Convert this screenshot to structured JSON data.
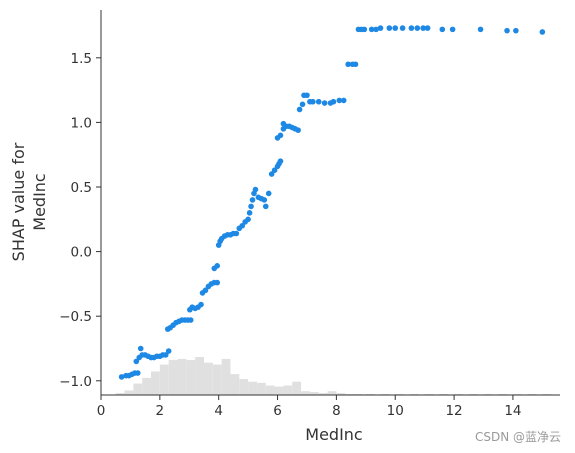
{
  "chart_data": {
    "type": "scatter",
    "xlabel": "MedInc",
    "ylabel_lines": [
      "SHAP value for",
      "MedInc"
    ],
    "xlim": [
      0,
      15.6
    ],
    "ylim": [
      -1.11,
      1.87
    ],
    "xticks": [
      0,
      2,
      4,
      6,
      8,
      10,
      12,
      14
    ],
    "yticks": [
      -1.0,
      -0.5,
      0.0,
      0.5,
      1.0,
      1.5
    ],
    "ytick_labels": [
      "−1.0",
      "−0.5",
      "0.0",
      "0.5",
      "1.0",
      "1.5"
    ],
    "point_color": "#1e88e5",
    "histogram_color": "#e0e0e0",
    "axis_color": "#333333",
    "points": [
      [
        0.7,
        -0.97
      ],
      [
        0.85,
        -0.96
      ],
      [
        0.95,
        -0.96
      ],
      [
        1.05,
        -0.95
      ],
      [
        1.15,
        -0.94
      ],
      [
        1.25,
        -0.94
      ],
      [
        1.2,
        -0.85
      ],
      [
        1.3,
        -0.82
      ],
      [
        1.35,
        -0.75
      ],
      [
        1.4,
        -0.8
      ],
      [
        1.5,
        -0.8
      ],
      [
        1.6,
        -0.81
      ],
      [
        1.7,
        -0.82
      ],
      [
        1.8,
        -0.82
      ],
      [
        1.9,
        -0.81
      ],
      [
        2.0,
        -0.81
      ],
      [
        2.1,
        -0.8
      ],
      [
        2.2,
        -0.8
      ],
      [
        2.3,
        -0.77
      ],
      [
        2.27,
        -0.6
      ],
      [
        2.35,
        -0.59
      ],
      [
        2.45,
        -0.57
      ],
      [
        2.55,
        -0.55
      ],
      [
        2.65,
        -0.54
      ],
      [
        2.75,
        -0.53
      ],
      [
        2.85,
        -0.53
      ],
      [
        2.95,
        -0.53
      ],
      [
        3.05,
        -0.53
      ],
      [
        3.02,
        -0.45
      ],
      [
        3.1,
        -0.43
      ],
      [
        3.2,
        -0.44
      ],
      [
        3.3,
        -0.43
      ],
      [
        3.4,
        -0.41
      ],
      [
        3.45,
        -0.32
      ],
      [
        3.55,
        -0.3
      ],
      [
        3.65,
        -0.27
      ],
      [
        3.75,
        -0.25
      ],
      [
        3.85,
        -0.24
      ],
      [
        3.95,
        -0.24
      ],
      [
        3.85,
        -0.13
      ],
      [
        3.95,
        -0.11
      ],
      [
        4.0,
        0.05
      ],
      [
        4.05,
        0.08
      ],
      [
        4.1,
        0.1
      ],
      [
        4.2,
        0.12
      ],
      [
        4.3,
        0.13
      ],
      [
        4.4,
        0.13
      ],
      [
        4.5,
        0.14
      ],
      [
        4.6,
        0.14
      ],
      [
        4.7,
        0.18
      ],
      [
        4.8,
        0.2
      ],
      [
        4.9,
        0.23
      ],
      [
        5.0,
        0.25
      ],
      [
        5.05,
        0.3
      ],
      [
        5.1,
        0.35
      ],
      [
        5.15,
        0.4
      ],
      [
        5.2,
        0.45
      ],
      [
        5.25,
        0.48
      ],
      [
        5.35,
        0.42
      ],
      [
        5.45,
        0.41
      ],
      [
        5.55,
        0.4
      ],
      [
        5.6,
        0.35
      ],
      [
        5.7,
        0.45
      ],
      [
        5.8,
        0.6
      ],
      [
        5.9,
        0.63
      ],
      [
        6.0,
        0.66
      ],
      [
        6.05,
        0.68
      ],
      [
        6.1,
        0.7
      ],
      [
        6.0,
        0.88
      ],
      [
        6.1,
        0.9
      ],
      [
        6.2,
        0.95
      ],
      [
        6.2,
        0.99
      ],
      [
        6.3,
        0.97
      ],
      [
        6.4,
        0.97
      ],
      [
        6.5,
        0.96
      ],
      [
        6.6,
        0.95
      ],
      [
        6.7,
        0.94
      ],
      [
        6.75,
        1.1
      ],
      [
        6.85,
        1.14
      ],
      [
        6.9,
        1.21
      ],
      [
        7.0,
        1.21
      ],
      [
        7.1,
        1.16
      ],
      [
        7.2,
        1.16
      ],
      [
        7.4,
        1.16
      ],
      [
        7.6,
        1.15
      ],
      [
        7.8,
        1.15
      ],
      [
        7.9,
        1.16
      ],
      [
        8.1,
        1.17
      ],
      [
        8.25,
        1.17
      ],
      [
        8.4,
        1.45
      ],
      [
        8.55,
        1.45
      ],
      [
        8.65,
        1.45
      ],
      [
        8.75,
        1.72
      ],
      [
        8.85,
        1.72
      ],
      [
        8.95,
        1.72
      ],
      [
        9.2,
        1.72
      ],
      [
        9.35,
        1.72
      ],
      [
        9.5,
        1.73
      ],
      [
        9.8,
        1.73
      ],
      [
        10.0,
        1.73
      ],
      [
        10.25,
        1.73
      ],
      [
        10.55,
        1.73
      ],
      [
        10.75,
        1.73
      ],
      [
        10.95,
        1.73
      ],
      [
        11.1,
        1.73
      ],
      [
        11.6,
        1.72
      ],
      [
        11.95,
        1.72
      ],
      [
        12.9,
        1.72
      ],
      [
        13.8,
        1.71
      ],
      [
        14.1,
        1.71
      ],
      [
        15.0,
        1.7
      ]
    ],
    "histogram": [
      [
        0.5,
        0.05
      ],
      [
        0.8,
        0.12
      ],
      [
        1.1,
        0.3
      ],
      [
        1.4,
        0.45
      ],
      [
        1.7,
        0.62
      ],
      [
        2.0,
        0.8
      ],
      [
        2.3,
        0.92
      ],
      [
        2.6,
        0.95
      ],
      [
        2.9,
        0.92
      ],
      [
        3.2,
        1.0
      ],
      [
        3.5,
        0.85
      ],
      [
        3.8,
        0.8
      ],
      [
        4.1,
        0.95
      ],
      [
        4.4,
        0.55
      ],
      [
        4.7,
        0.42
      ],
      [
        5.0,
        0.35
      ],
      [
        5.3,
        0.32
      ],
      [
        5.6,
        0.25
      ],
      [
        5.9,
        0.22
      ],
      [
        6.2,
        0.25
      ],
      [
        6.5,
        0.35
      ],
      [
        6.8,
        0.1
      ],
      [
        7.1,
        0.08
      ],
      [
        7.4,
        0.05
      ],
      [
        7.7,
        0.1
      ],
      [
        8.0,
        0.05
      ],
      [
        8.3,
        0.02
      ],
      [
        8.6,
        0.01
      ],
      [
        9.0,
        0.02
      ],
      [
        9.5,
        0.01
      ],
      [
        10.0,
        0.01
      ],
      [
        10.5,
        0.01
      ],
      [
        11.0,
        0.01
      ],
      [
        11.5,
        0.01
      ],
      [
        12.0,
        0.01
      ],
      [
        12.5,
        0.01
      ],
      [
        13.0,
        0.01
      ],
      [
        13.5,
        0.01
      ],
      [
        14.0,
        0.01
      ],
      [
        14.5,
        0.01
      ],
      [
        15.0,
        0.02
      ]
    ]
  },
  "watermark": "CSDN @蓝净云"
}
